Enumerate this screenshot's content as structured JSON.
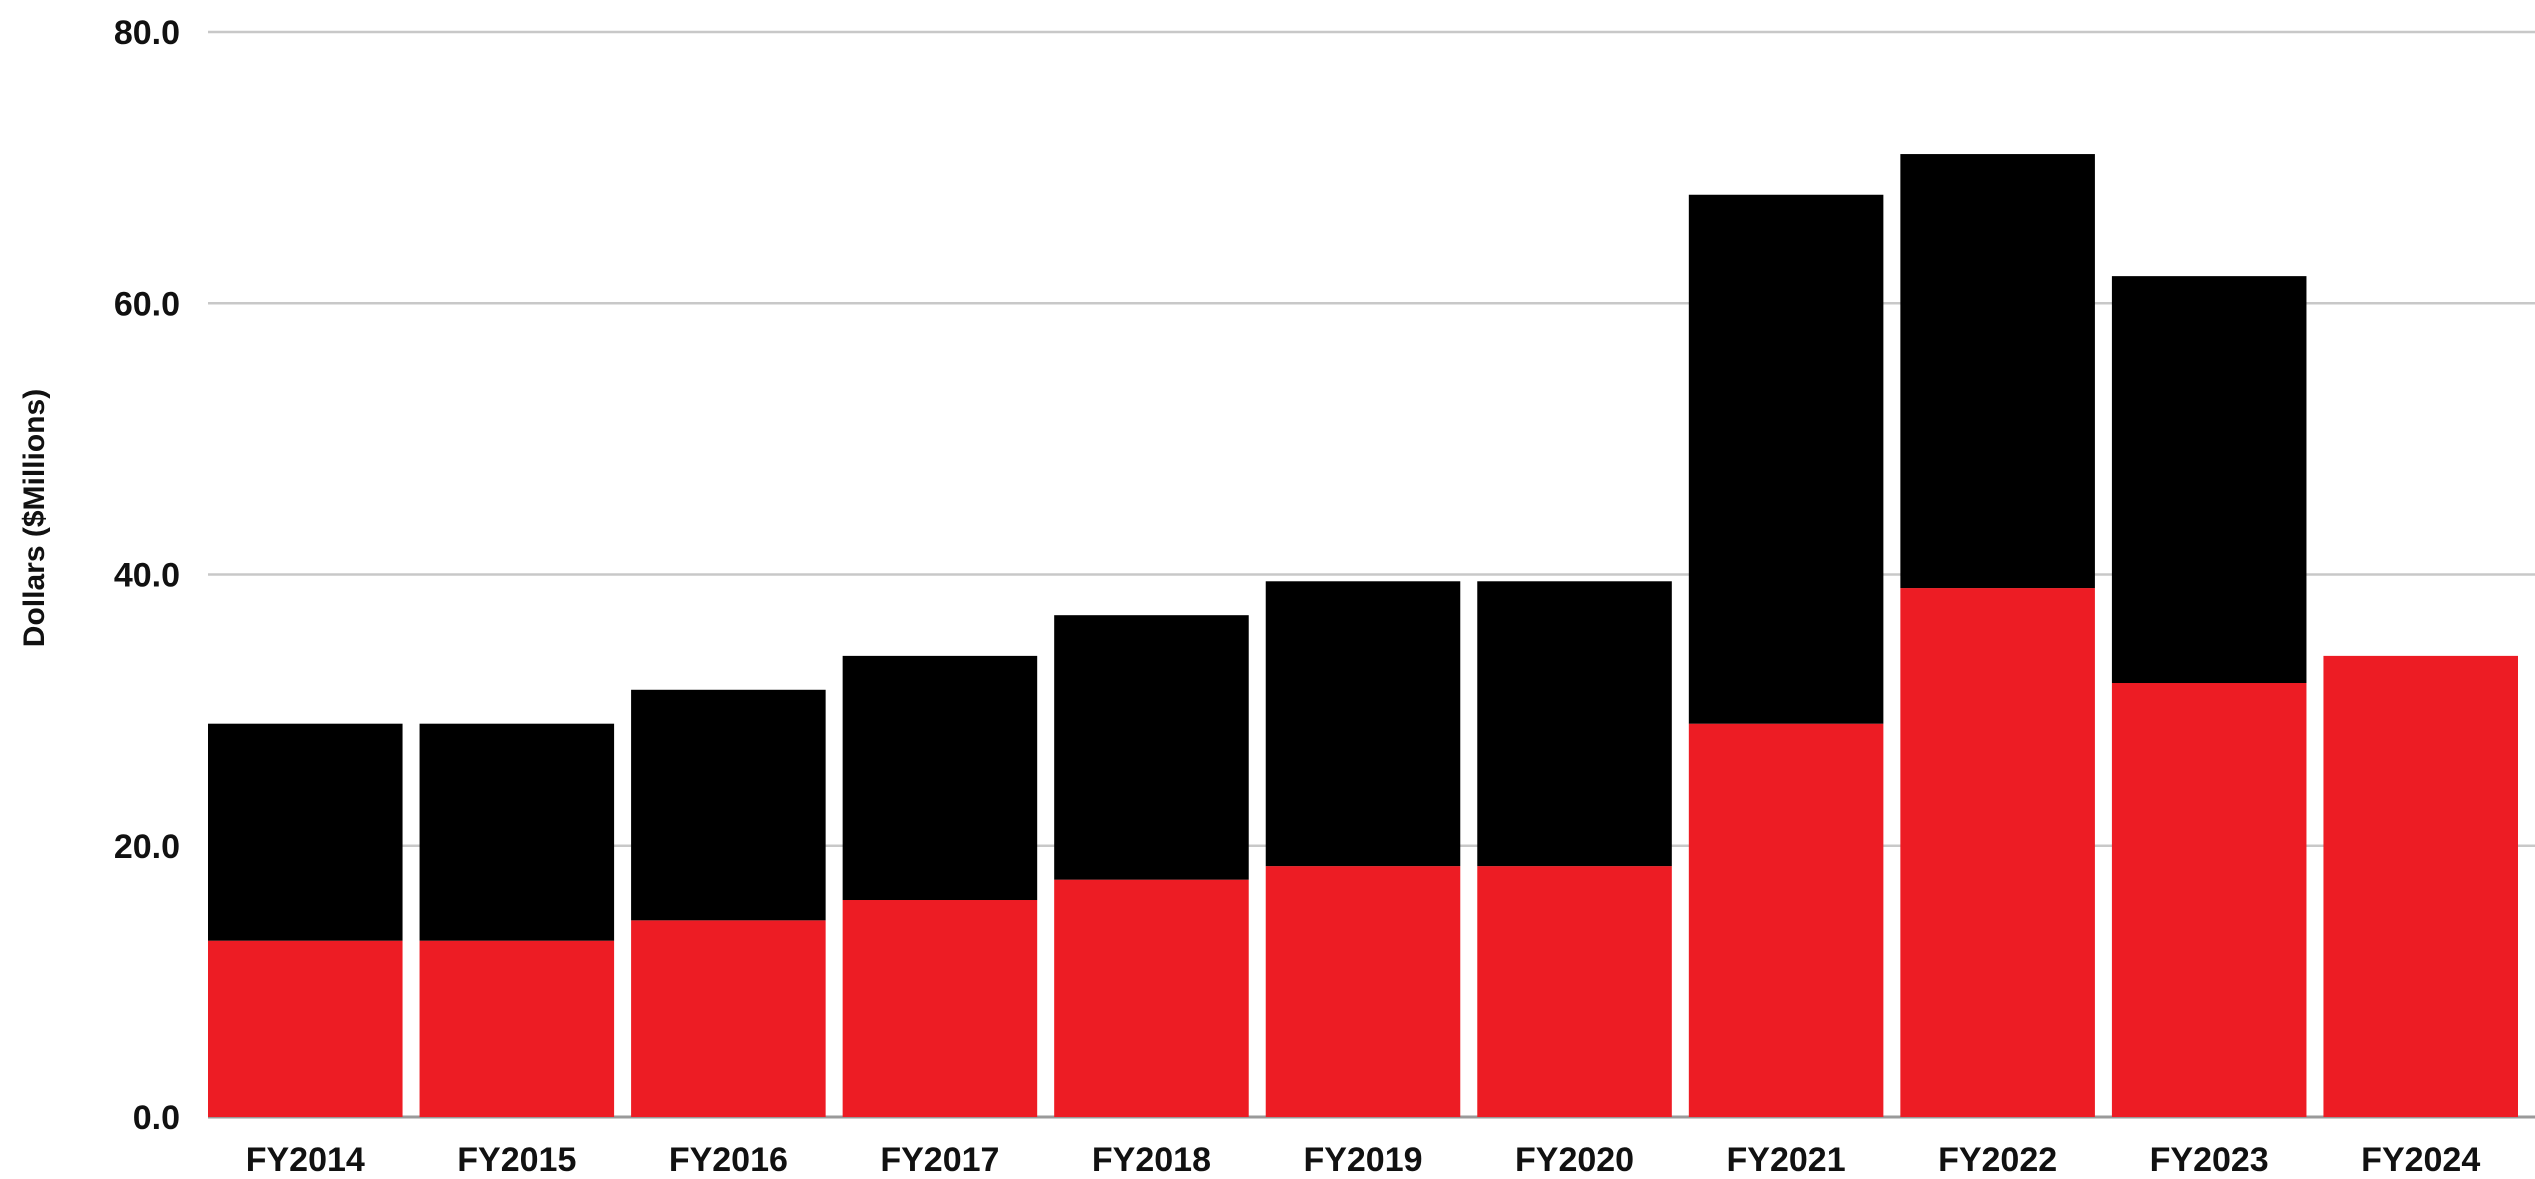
{
  "colors": {
    "series_bottom": "#ed1c24",
    "series_top": "#000000",
    "grid": "#c8c8c8",
    "text": "#111111"
  },
  "chart_data": {
    "type": "bar",
    "stacked": true,
    "title": "",
    "xlabel": "",
    "ylabel": "Dollars ($Millions)",
    "ylim": [
      0,
      80
    ],
    "yticks": [
      "0.0",
      "20.0",
      "40.0",
      "60.0",
      "80.0"
    ],
    "grid": true,
    "legend": "none",
    "categories": [
      "FY2014",
      "FY2015",
      "FY2016",
      "FY2017",
      "FY2018",
      "FY2019",
      "FY2020",
      "FY2021",
      "FY2022",
      "FY2023",
      "FY2024"
    ],
    "series": [
      {
        "color": "#ed1c24",
        "values": [
          13.0,
          13.0,
          14.5,
          16.0,
          17.5,
          18.5,
          18.5,
          29.0,
          39.0,
          32.0,
          34.0
        ]
      },
      {
        "color": "#000000",
        "values": [
          16.0,
          16.0,
          17.0,
          18.0,
          19.5,
          21.0,
          21.0,
          39.0,
          32.0,
          30.0,
          0.0
        ]
      }
    ]
  }
}
